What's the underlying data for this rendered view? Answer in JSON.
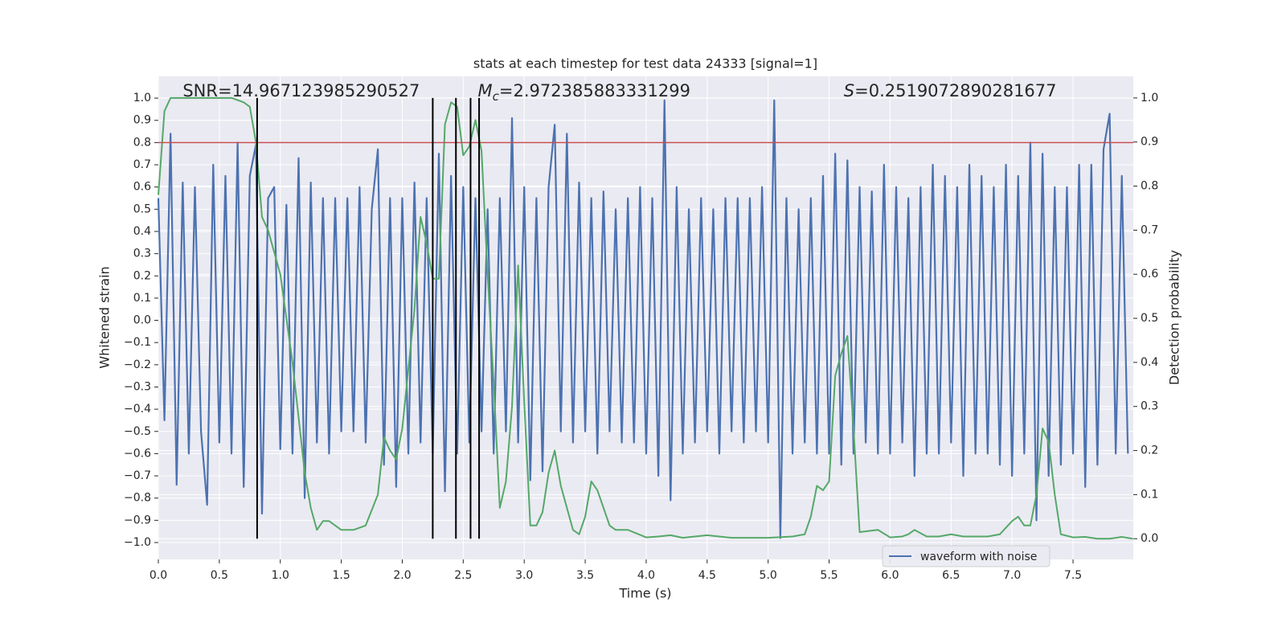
{
  "chart_data": {
    "type": "line",
    "title": "stats at each timestep for test data 24333 [signal=1]",
    "xlabel": "Time (s)",
    "ylabel": "Whitened strain",
    "y2label": "Detection probability",
    "annotations": [
      {
        "text": "SNR=14.967123985290527",
        "x": 0.2
      },
      {
        "symbol": "M",
        "subscript": "c",
        "text": "=2.972385883331299",
        "x": 2.62
      },
      {
        "symbol": "S",
        "text": "=0.2519072890281677",
        "x": 5.62
      }
    ],
    "xlim": [
      0,
      7.994
    ],
    "xticks": [
      {
        "value": 0,
        "label": "0.0"
      },
      0.5,
      {
        "value": 1,
        "label": "1.0"
      },
      1.5,
      {
        "value": 2,
        "label": "2.0"
      },
      2.5,
      {
        "value": 3,
        "label": "3.0"
      },
      3.5,
      {
        "value": 4,
        "label": "4.0"
      },
      4.5,
      {
        "value": 5,
        "label": "5.0"
      },
      5.5,
      {
        "value": 6,
        "label": "6.0"
      },
      6.5,
      {
        "value": 7,
        "label": "7.0"
      },
      7.5
    ],
    "ylim": [
      -1.076,
      1.098
    ],
    "yticks": [
      {
        "value": -1,
        "label": "−1.0"
      },
      {
        "value": -0.9,
        "label": "−0.9"
      },
      {
        "value": -0.8,
        "label": "−0.8"
      },
      {
        "value": -0.7,
        "label": "−0.7"
      },
      {
        "value": -0.6,
        "label": "−0.6"
      },
      {
        "value": -0.5,
        "label": "−0.5"
      },
      {
        "value": -0.4,
        "label": "−0.4"
      },
      {
        "value": -0.3,
        "label": "−0.3"
      },
      {
        "value": -0.2,
        "label": "−0.2"
      },
      {
        "value": -0.1,
        "label": "−0.1"
      },
      {
        "value": 0,
        "label": "0.0"
      },
      0.1,
      0.2,
      0.3,
      0.4,
      0.5,
      0.6,
      0.7,
      0.8,
      0.9,
      {
        "value": 1,
        "label": "1.0"
      }
    ],
    "y2lim": [
      -0.047,
      1.049
    ],
    "y2ticks": [
      {
        "value": 0,
        "label": "0.0"
      },
      0.1,
      0.2,
      0.3,
      0.4,
      0.5,
      0.6,
      0.7,
      0.8,
      0.9,
      {
        "value": 1,
        "label": "1.0"
      }
    ],
    "grid": true,
    "legend": "lower right",
    "series": [
      {
        "name": "waveform with noise",
        "color": "#4c72b0",
        "x": [
          0,
          0.05,
          0.1,
          0.15,
          0.2,
          0.25,
          0.3,
          0.35,
          0.4,
          0.45,
          0.5,
          0.55,
          0.6,
          0.65,
          0.7,
          0.75,
          0.8,
          0.85,
          0.9,
          0.95,
          1,
          1.05,
          1.1,
          1.15,
          1.2,
          1.25,
          1.3,
          1.35,
          1.4,
          1.45,
          1.5,
          1.55,
          1.6,
          1.65,
          1.7,
          1.75,
          1.8,
          1.85,
          1.9,
          1.95,
          2,
          2.05,
          2.1,
          2.15,
          2.2,
          2.25,
          2.3,
          2.35,
          2.4,
          2.45,
          2.5,
          2.55,
          2.6,
          2.65,
          2.7,
          2.75,
          2.8,
          2.85,
          2.9,
          2.95,
          3,
          3.05,
          3.1,
          3.15,
          3.2,
          3.25,
          3.3,
          3.35,
          3.4,
          3.45,
          3.5,
          3.55,
          3.6,
          3.65,
          3.7,
          3.75,
          3.8,
          3.85,
          3.9,
          3.95,
          4,
          4.05,
          4.1,
          4.15,
          4.2,
          4.25,
          4.3,
          4.35,
          4.4,
          4.45,
          4.5,
          4.55,
          4.6,
          4.65,
          4.7,
          4.75,
          4.8,
          4.85,
          4.9,
          4.95,
          5,
          5.05,
          5.1,
          5.15,
          5.2,
          5.25,
          5.3,
          5.35,
          5.4,
          5.45,
          5.5,
          5.55,
          5.6,
          5.65,
          5.7,
          5.75,
          5.8,
          5.85,
          5.9,
          5.95,
          6,
          6.05,
          6.1,
          6.15,
          6.2,
          6.25,
          6.3,
          6.35,
          6.4,
          6.45,
          6.5,
          6.55,
          6.6,
          6.65,
          6.7,
          6.75,
          6.8,
          6.85,
          6.9,
          6.95,
          7,
          7.05,
          7.1,
          7.15,
          7.2,
          7.25,
          7.3,
          7.35,
          7.4,
          7.45,
          7.5,
          7.55,
          7.6,
          7.65,
          7.7,
          7.75,
          7.8,
          7.85,
          7.9,
          7.95
        ],
        "values": [
          0.55,
          -0.45,
          0.84,
          -0.74,
          0.62,
          -0.6,
          0.6,
          -0.5,
          -0.83,
          0.7,
          -0.55,
          0.65,
          -0.6,
          0.8,
          -0.75,
          0.65,
          0.79,
          -0.87,
          0.55,
          0.6,
          -0.58,
          0.52,
          -0.6,
          0.73,
          -0.8,
          0.62,
          -0.55,
          0.55,
          -0.6,
          0.55,
          -0.5,
          0.55,
          -0.5,
          0.6,
          -0.55,
          0.5,
          0.77,
          -0.65,
          0.55,
          -0.75,
          0.55,
          -0.6,
          0.62,
          -0.55,
          0.55,
          -0.6,
          0.75,
          -0.77,
          0.65,
          -0.6,
          0.6,
          -0.55,
          0.55,
          -0.5,
          0.5,
          -0.6,
          0.55,
          -0.5,
          0.91,
          -0.55,
          0.6,
          -0.72,
          0.55,
          -0.68,
          0.6,
          0.88,
          -0.5,
          0.84,
          -0.55,
          0.62,
          -0.5,
          0.55,
          -0.6,
          0.58,
          -0.5,
          0.5,
          -0.55,
          0.55,
          -0.55,
          0.6,
          -0.6,
          0.55,
          -0.7,
          0.99,
          -0.81,
          0.6,
          -0.6,
          0.5,
          -0.55,
          0.55,
          -0.5,
          0.5,
          -0.6,
          0.55,
          -0.5,
          0.55,
          -0.55,
          0.55,
          -0.5,
          0.6,
          -0.55,
          0.99,
          -0.98,
          0.55,
          -0.6,
          0.5,
          -0.55,
          0.55,
          -0.6,
          0.65,
          -0.6,
          0.75,
          -0.65,
          0.72,
          -0.6,
          0.6,
          -0.55,
          0.58,
          -0.6,
          0.7,
          -0.6,
          0.6,
          -0.55,
          0.55,
          -0.7,
          0.6,
          -0.6,
          0.7,
          -0.6,
          0.65,
          -0.55,
          0.6,
          -0.7,
          0.7,
          -0.6,
          0.65,
          -0.6,
          0.6,
          -0.65,
          0.7,
          -0.7,
          0.65,
          -0.6,
          0.8,
          -0.9,
          0.75,
          -0.7,
          0.6,
          -0.65,
          0.6,
          -0.6,
          0.7,
          -0.75,
          0.7,
          -0.65,
          0.77,
          0.93,
          -0.6,
          0.65,
          -0.6
        ]
      },
      {
        "color": "#55a868",
        "axis": "y2",
        "x": [
          0,
          0.05,
          0.1,
          0.2,
          0.4,
          0.6,
          0.7,
          0.75,
          0.8,
          0.85,
          0.9,
          1,
          1.1,
          1.2,
          1.25,
          1.3,
          1.35,
          1.4,
          1.5,
          1.6,
          1.7,
          1.8,
          1.85,
          1.9,
          1.95,
          2,
          2.1,
          2.15,
          2.2,
          2.25,
          2.3,
          2.35,
          2.4,
          2.45,
          2.5,
          2.55,
          2.6,
          2.65,
          2.7,
          2.75,
          2.8,
          2.85,
          2.9,
          2.95,
          3,
          3.05,
          3.1,
          3.15,
          3.2,
          3.25,
          3.3,
          3.4,
          3.45,
          3.5,
          3.55,
          3.6,
          3.7,
          3.75,
          3.85,
          4,
          4.1,
          4.2,
          4.3,
          4.5,
          4.7,
          5,
          5.2,
          5.3,
          5.35,
          5.4,
          5.45,
          5.5,
          5.55,
          5.6,
          5.65,
          5.7,
          5.75,
          5.9,
          6,
          6.1,
          6.15,
          6.2,
          6.3,
          6.4,
          6.5,
          6.6,
          6.8,
          6.9,
          7,
          7.05,
          7.1,
          7.15,
          7.2,
          7.25,
          7.3,
          7.35,
          7.4,
          7.5,
          7.6,
          7.7,
          7.8,
          7.9,
          7.99
        ],
        "values": [
          0.78,
          0.97,
          1,
          1,
          1,
          1,
          0.99,
          0.98,
          0.9,
          0.73,
          0.7,
          0.6,
          0.4,
          0.15,
          0.07,
          0.02,
          0.04,
          0.04,
          0.02,
          0.02,
          0.03,
          0.1,
          0.23,
          0.2,
          0.18,
          0.25,
          0.52,
          0.73,
          0.67,
          0.59,
          0.59,
          0.94,
          0.99,
          0.98,
          0.87,
          0.89,
          0.95,
          0.88,
          0.6,
          0.35,
          0.07,
          0.13,
          0.3,
          0.62,
          0.31,
          0.03,
          0.03,
          0.06,
          0.15,
          0.2,
          0.12,
          0.02,
          0.01,
          0.05,
          0.13,
          0.11,
          0.03,
          0.02,
          0.02,
          0.003,
          0.005,
          0.008,
          0.002,
          0.008,
          0.002,
          0.002,
          0.005,
          0.01,
          0.05,
          0.12,
          0.11,
          0.13,
          0.37,
          0.42,
          0.46,
          0.25,
          0.015,
          0.02,
          0.003,
          0.005,
          0.01,
          0.02,
          0.005,
          0.005,
          0.01,
          0.005,
          0.005,
          0.01,
          0.04,
          0.05,
          0.03,
          0.03,
          0.1,
          0.25,
          0.22,
          0.1,
          0.01,
          0.003,
          0.004,
          0,
          0,
          0.004,
          0
        ]
      }
    ],
    "hline": {
      "y": 0.8,
      "color": "#c44e52"
    },
    "vlines": {
      "x": [
        0.81,
        2.25,
        2.44,
        2.56,
        2.63
      ],
      "ymin": 0,
      "ymax": 1,
      "axis": "y2",
      "color": "#000000"
    }
  }
}
